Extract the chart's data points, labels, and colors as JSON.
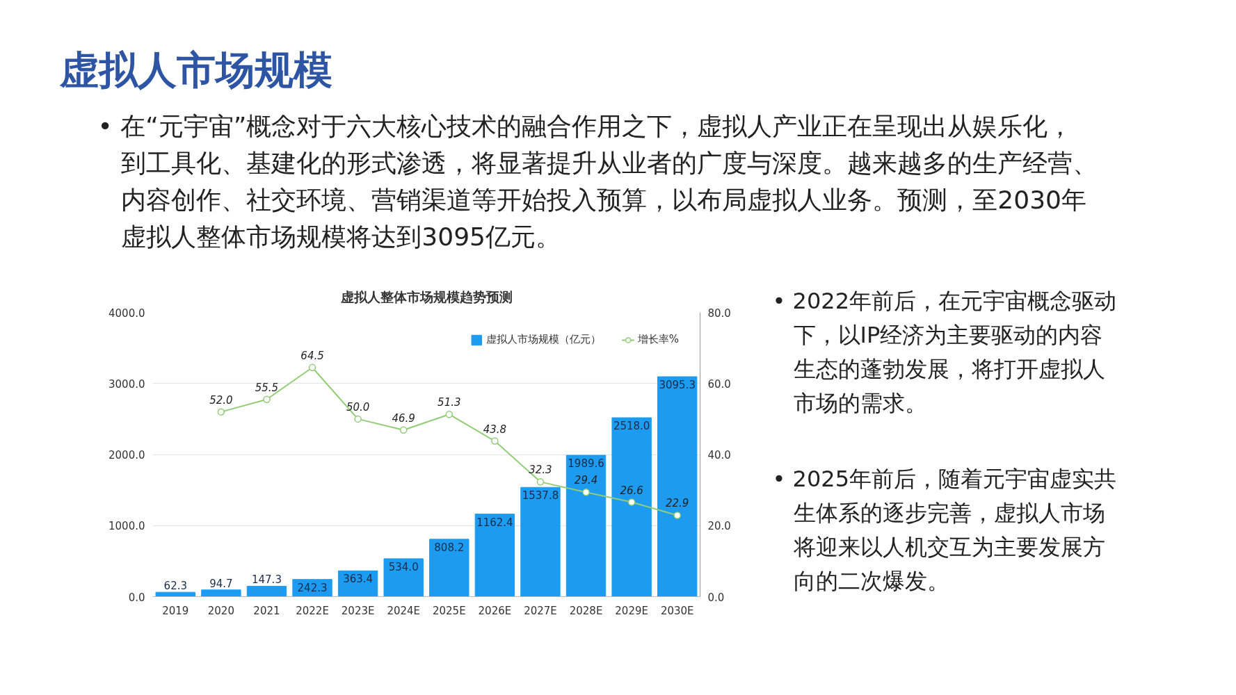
{
  "chart_data": {
    "type": "bar",
    "title": "虚拟人整体市场规模趋势预测",
    "categories": [
      "2019",
      "2020",
      "2021",
      "2022E",
      "2023E",
      "2024E",
      "2025E",
      "2026E",
      "2027E",
      "2028E",
      "2029E",
      "2030E"
    ],
    "series": [
      {
        "name": "虚拟人市场规模（亿元）",
        "color": "#1d9bf0",
        "values": [
          62.3,
          94.7,
          147.3,
          242.3,
          363.4,
          534,
          808.2,
          1162.4,
          1537.8,
          1989.6,
          2518,
          3095.3
        ],
        "value_labels": [
          "62.3",
          "94.7",
          "147.3",
          "242.3",
          "363.4",
          "534.0",
          "808.2",
          "1162.4",
          "1537.8",
          "1989.6",
          "2518.0",
          "3095.3"
        ]
      },
      {
        "name": "增长率%",
        "type": "line",
        "axis": "y2",
        "color": "#93cc76",
        "values": [
          null,
          52,
          55.5,
          64.5,
          50,
          46.9,
          51.3,
          43.8,
          32.3,
          29.4,
          26.6,
          22.9
        ],
        "value_labels": [
          null,
          "52.0",
          "55.5",
          "64.5",
          "50.0",
          "46.9",
          "51.3",
          "43.8",
          "32.3",
          "29.4",
          "26.6",
          "22.9"
        ]
      }
    ],
    "ylim": [
      0,
      4000
    ],
    "yticks": [
      {
        "value": 0,
        "label": "0.0"
      },
      {
        "value": 1000,
        "label": "1000.0"
      },
      {
        "value": 2000,
        "label": "2000.0"
      },
      {
        "value": 3000,
        "label": "3000.0"
      },
      {
        "value": 4000,
        "label": "4000.0"
      }
    ],
    "y2lim": [
      0,
      80
    ],
    "y2ticks": [
      {
        "value": 0,
        "label": "0.0"
      },
      {
        "value": 20,
        "label": "20.0"
      },
      {
        "value": 40,
        "label": "40.0"
      },
      {
        "value": 60,
        "label": "60.0"
      },
      {
        "value": 80,
        "label": "80.0"
      }
    ],
    "grid": "y",
    "legend": "top right",
    "marker": "circle",
    "line_style": "solid",
    "annotations": [
      "虚拟人市场规模",
      "• 在“元宇宙”概念对于六大核心技术的融合作用之下，虚拟人产业正在呈现出从娱乐化，到工具化、基建化的形式渗透，将显著提升从业者的广度与深度。越来越多的生产经营、内容创作、社交环境、营销渠道等开始投入预算，以布局虚拟人业务。预测，至2030年虚拟人整体市场规模将达到3095亿元。",
      "• 2022年前后，在元宇宙概念驱动下，以IP经济为主要驱动的内容生态的蓬勃发展，将打开虚拟人市场的需求。",
      "• 2025年前后，随着元宇宙虚实共生体系的逐步完善，虚拟人市场将迎来以人机交互为主要发展方向的二次爆发。"
    ]
  }
}
